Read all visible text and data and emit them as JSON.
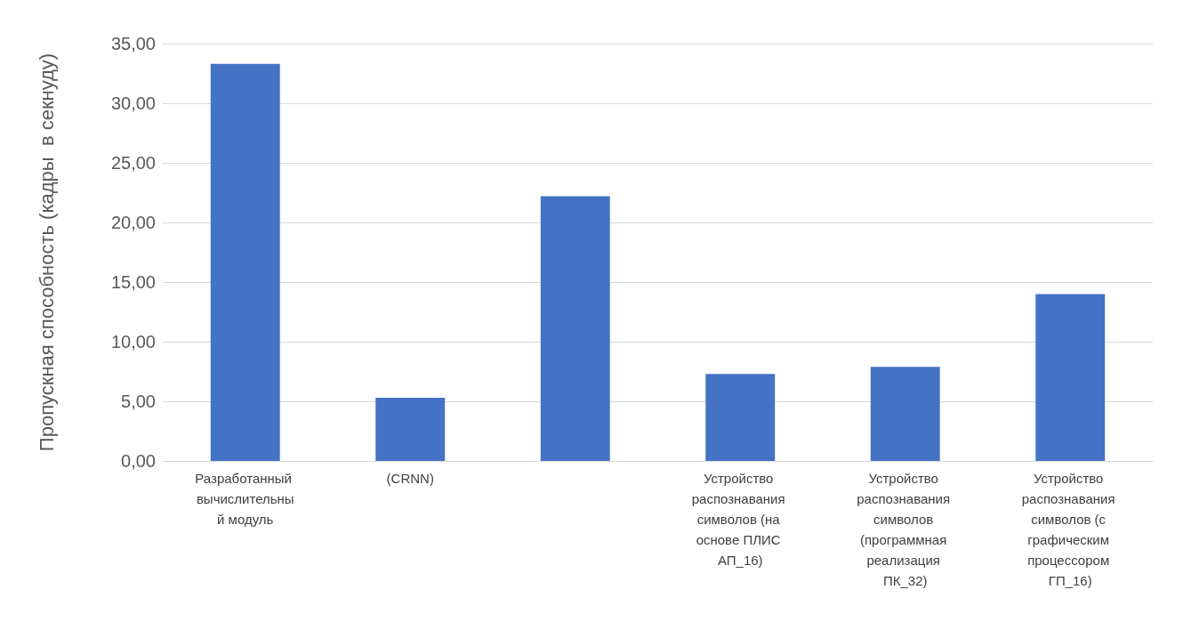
{
  "chart_data": {
    "type": "bar",
    "ylabel": "Пропускная способность (кадры  в секнуду)",
    "categories": [
      "Разработанный вычислительный модуль",
      "(CRNN)",
      null,
      "Устройство распознавания символов (на основе ПЛИС АП_16)",
      "Устройство распознавания символов (программная реализация ПК_32)",
      "Устройство распознавания символов (с графическим процессором ГП_16)"
    ],
    "values": [
      33.3,
      5.3,
      22.2,
      7.3,
      7.9,
      14.0
    ],
    "color": "#4472c4",
    "ylim": [
      0,
      35
    ],
    "yticks": [
      {
        "value": 0,
        "label": "0,00"
      },
      {
        "value": 5,
        "label": "5,00"
      },
      {
        "value": 10,
        "label": "10,00"
      },
      {
        "value": 15,
        "label": "15,00"
      },
      {
        "value": 20,
        "label": "20,00"
      },
      {
        "value": 25,
        "label": "25,00"
      },
      {
        "value": 30,
        "label": "30,00"
      },
      {
        "value": 35,
        "label": "35,00"
      }
    ],
    "grid": "y"
  }
}
